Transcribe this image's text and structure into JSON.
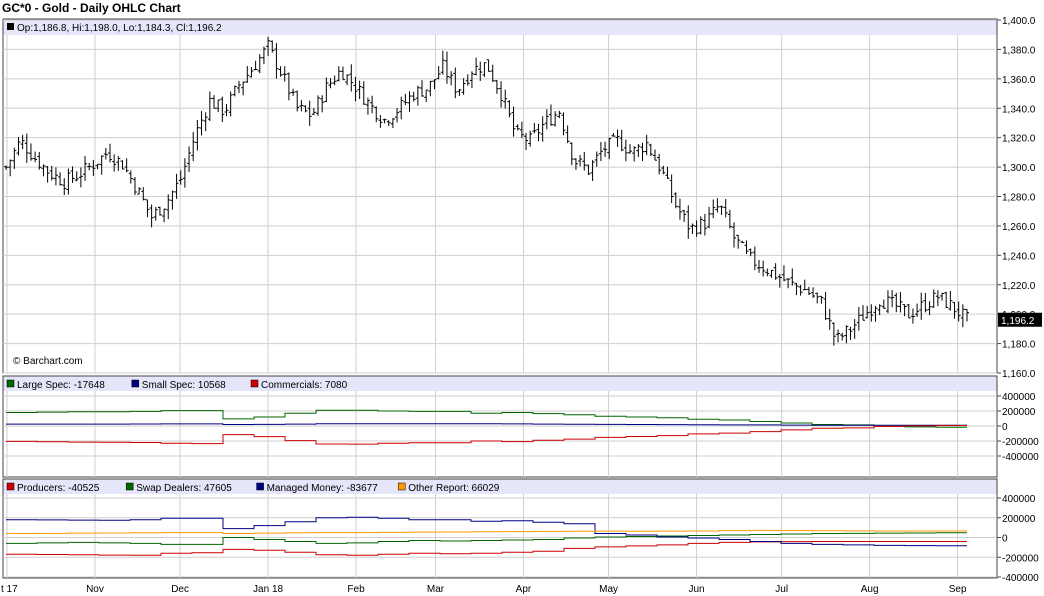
{
  "title": "GC*0 - Gold - Daily OHLC Chart",
  "ohlc_info": "Op:1,186.8, Hi:1,198.0, Lo:1,184.3, Cl:1,196.2",
  "watermark": "© Barchart.com",
  "last_price_label": "1,196.2",
  "colors": {
    "price": "#000000",
    "large_spec": "#006600",
    "small_spec": "#000080",
    "commercials": "#cc0000",
    "producers": "#cc0000",
    "swap_dealers": "#006600",
    "managed_money": "#000080",
    "other_report": "#ff9900",
    "header_band": "#e6e6fa",
    "grid": "#cfcfcf"
  },
  "chart_data": [
    {
      "type": "ohlc",
      "title": "GC*0 - Gold - Daily OHLC Chart",
      "ylim": [
        1160,
        1400
      ],
      "y_ticks": [
        "1,400.0",
        "1,380.0",
        "1,360.0",
        "1,340.0",
        "1,320.0",
        "1,300.0",
        "1,280.0",
        "1,260.0",
        "1,240.0",
        "1,220.0",
        "1,200.0",
        "1,180.0",
        "1,160.0"
      ],
      "y_tick_values": [
        1400,
        1380,
        1360,
        1340,
        1320,
        1300,
        1280,
        1260,
        1240,
        1220,
        1200,
        1180,
        1160
      ],
      "x_labels": [
        "t 17",
        "Nov",
        "Dec",
        "Jan 18",
        "Feb",
        "Mar",
        "Apr",
        "May",
        "Jun",
        "Jul",
        "Aug",
        "Sep"
      ],
      "x_label_days": [
        0,
        31,
        61,
        92,
        123,
        151,
        182,
        212,
        243,
        273,
        304,
        335
      ],
      "last_close": 1196.2,
      "closes_weekly": [
        1300,
        1318,
        1306,
        1296,
        1290,
        1295,
        1302,
        1310,
        1302,
        1285,
        1266,
        1276,
        1292,
        1322,
        1345,
        1338,
        1356,
        1368,
        1382,
        1362,
        1340,
        1335,
        1354,
        1366,
        1355,
        1342,
        1332,
        1340,
        1350,
        1354,
        1368,
        1352,
        1366,
        1370,
        1350,
        1322,
        1318,
        1330,
        1338,
        1305,
        1298,
        1312,
        1318,
        1310,
        1316,
        1298,
        1274,
        1258,
        1262,
        1274,
        1252,
        1238,
        1232,
        1226,
        1220,
        1216,
        1208,
        1182,
        1190,
        1200,
        1210,
        1206,
        1200,
        1206,
        1212,
        1205,
        1196.2
      ]
    },
    {
      "type": "line",
      "title": "",
      "legend": [
        "Large Spec: -17648",
        "Small Spec: 10568",
        "Commercials: 7080"
      ],
      "ylim": [
        -400000,
        400000
      ],
      "y_ticks": [
        "400000",
        "200000",
        "0",
        "-200000",
        "-400000"
      ],
      "y_tick_values": [
        400000,
        200000,
        0,
        -200000,
        -400000
      ],
      "series": [
        {
          "name": "Large Spec",
          "values": [
            180000,
            185000,
            190000,
            190000,
            195000,
            205000,
            205000,
            95000,
            120000,
            170000,
            210000,
            210000,
            200000,
            195000,
            195000,
            170000,
            180000,
            165000,
            150000,
            130000,
            120000,
            110000,
            90000,
            80000,
            60000,
            40000,
            20000,
            15000,
            -5000,
            -12000,
            -17648
          ]
        },
        {
          "name": "Small Spec",
          "values": [
            25000,
            25000,
            26000,
            26000,
            27000,
            28000,
            28000,
            20000,
            22000,
            25000,
            30000,
            31000,
            30000,
            29000,
            29000,
            30000,
            28000,
            26000,
            24000,
            22000,
            20000,
            18000,
            16000,
            15000,
            14000,
            12000,
            11000,
            11000,
            10000,
            10200,
            10568
          ]
        },
        {
          "name": "Commercials",
          "values": [
            -205000,
            -210000,
            -215000,
            -216000,
            -220000,
            -230000,
            -235000,
            -115000,
            -142000,
            -195000,
            -240000,
            -241000,
            -230000,
            -224000,
            -224000,
            -200000,
            -208000,
            -191000,
            -174000,
            -152000,
            -140000,
            -128000,
            -106000,
            -95000,
            -74000,
            -52000,
            -31000,
            -26000,
            -5000,
            1800,
            7080
          ]
        }
      ]
    },
    {
      "type": "line",
      "title": "",
      "legend": [
        "Producers: -40525",
        "Swap Dealers: 47605",
        "Managed Money: -83677",
        "Other Report: 66029"
      ],
      "ylim": [
        -400000,
        400000
      ],
      "y_ticks": [
        "400000",
        "200000",
        "0",
        "-200000",
        "-400000"
      ],
      "y_tick_values": [
        400000,
        200000,
        0,
        -200000,
        -400000
      ],
      "series": [
        {
          "name": "Producers",
          "values": [
            -170000,
            -172000,
            -175000,
            -178000,
            -180000,
            -160000,
            -155000,
            -120000,
            -130000,
            -150000,
            -175000,
            -180000,
            -170000,
            -160000,
            -165000,
            -160000,
            -150000,
            -140000,
            -110000,
            -95000,
            -85000,
            -75000,
            -60000,
            -50000,
            -45000,
            -42000,
            -41000,
            -40000,
            -41000,
            -40500,
            -40525
          ]
        },
        {
          "name": "Swap Dealers",
          "values": [
            -60000,
            -55000,
            -50000,
            -55000,
            -60000,
            -70000,
            -70000,
            0,
            -20000,
            -40000,
            -60000,
            -55000,
            -40000,
            -30000,
            -35000,
            -30000,
            -25000,
            -20000,
            -5000,
            5000,
            10000,
            15000,
            20000,
            25000,
            30000,
            35000,
            40000,
            42000,
            45000,
            46000,
            47605
          ]
        },
        {
          "name": "Managed Money",
          "values": [
            180000,
            178000,
            176000,
            175000,
            180000,
            195000,
            195000,
            90000,
            120000,
            160000,
            200000,
            205000,
            195000,
            180000,
            180000,
            165000,
            170000,
            155000,
            140000,
            40000,
            25000,
            5000,
            -5000,
            -20000,
            -40000,
            -60000,
            -70000,
            -75000,
            -80000,
            -82000,
            -83677
          ]
        },
        {
          "name": "Other Report",
          "values": [
            40000,
            42000,
            45000,
            46000,
            48000,
            50000,
            50000,
            40000,
            45000,
            48000,
            50000,
            50000,
            52000,
            55000,
            56000,
            58000,
            60000,
            62000,
            64000,
            65000,
            64000,
            65000,
            66000,
            70000,
            72000,
            70000,
            68000,
            67000,
            66000,
            66000,
            66029
          ]
        }
      ]
    }
  ]
}
